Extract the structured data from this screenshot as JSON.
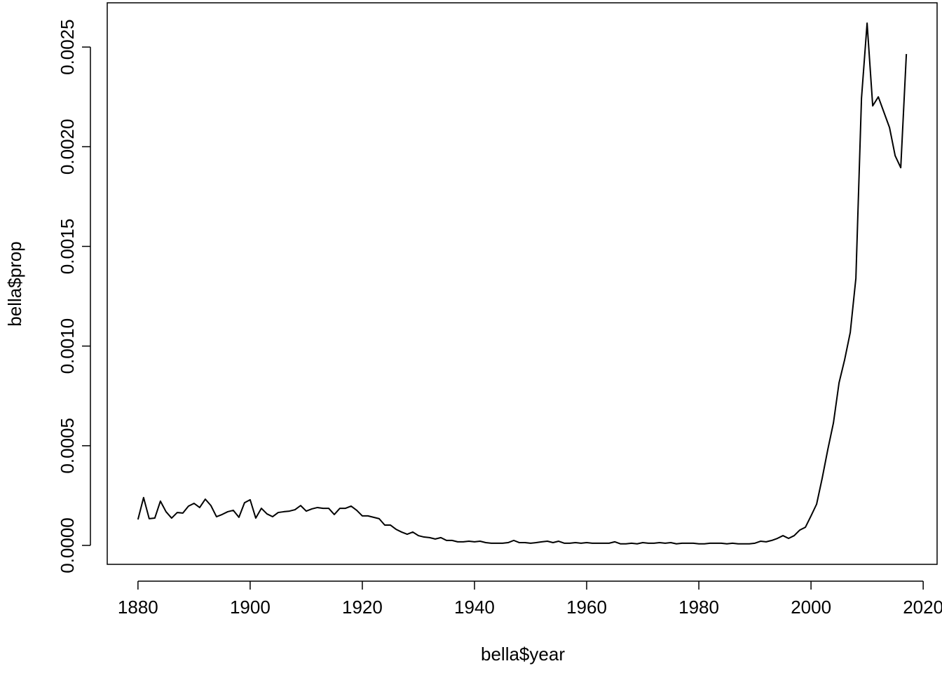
{
  "chart_data": {
    "type": "line",
    "xlabel": "bella$year",
    "ylabel": "bella$prop",
    "color": "#000000",
    "x": [
      1880,
      1881,
      1882,
      1883,
      1884,
      1885,
      1886,
      1887,
      1888,
      1889,
      1890,
      1891,
      1892,
      1893,
      1894,
      1895,
      1896,
      1897,
      1898,
      1899,
      1900,
      1901,
      1902,
      1903,
      1904,
      1905,
      1906,
      1907,
      1908,
      1909,
      1910,
      1911,
      1912,
      1913,
      1914,
      1915,
      1916,
      1917,
      1918,
      1919,
      1920,
      1921,
      1922,
      1923,
      1924,
      1925,
      1926,
      1927,
      1928,
      1929,
      1930,
      1931,
      1932,
      1933,
      1934,
      1935,
      1936,
      1937,
      1938,
      1939,
      1940,
      1941,
      1942,
      1943,
      1944,
      1945,
      1946,
      1947,
      1948,
      1949,
      1950,
      1951,
      1952,
      1953,
      1954,
      1955,
      1956,
      1957,
      1958,
      1959,
      1960,
      1961,
      1962,
      1963,
      1964,
      1965,
      1966,
      1967,
      1968,
      1969,
      1970,
      1971,
      1972,
      1973,
      1974,
      1975,
      1976,
      1977,
      1978,
      1979,
      1980,
      1981,
      1982,
      1983,
      1984,
      1985,
      1986,
      1987,
      1988,
      1989,
      1990,
      1991,
      1992,
      1993,
      1994,
      1995,
      1996,
      1997,
      1998,
      1999,
      2000,
      2001,
      2002,
      2003,
      2004,
      2005,
      2006,
      2007,
      2008,
      2009,
      2010,
      2011,
      2012,
      2013,
      2014,
      2015,
      2016,
      2017
    ],
    "values": [
      0.00013,
      0.00024,
      0.000134,
      0.000137,
      0.000222,
      0.000169,
      0.000137,
      0.000165,
      0.000162,
      0.000197,
      0.000211,
      0.00019,
      0.000232,
      0.0002,
      0.000144,
      0.000155,
      0.000169,
      0.000176,
      0.000141,
      0.000214,
      0.000229,
      0.000137,
      0.000186,
      0.000158,
      0.000144,
      0.000165,
      0.000169,
      0.000172,
      0.000179,
      0.0002,
      0.000172,
      0.000183,
      0.00019,
      0.000186,
      0.000186,
      0.000155,
      0.000186,
      0.000186,
      0.000197,
      0.000176,
      0.000148,
      0.000148,
      0.000141,
      0.000134,
      0.000102,
      0.000102,
      8.1e-05,
      6.7e-05,
      5.6e-05,
      6.7e-05,
      4.9e-05,
      4.2e-05,
      3.9e-05,
      3.2e-05,
      3.9e-05,
      2.5e-05,
      2.5e-05,
      1.8e-05,
      1.8e-05,
      2.1e-05,
      1.8e-05,
      2.1e-05,
      1.4e-05,
      1.1e-05,
      1.1e-05,
      1.1e-05,
      1.4e-05,
      2.5e-05,
      1.4e-05,
      1.4e-05,
      1.1e-05,
      1.4e-05,
      1.8e-05,
      2.1e-05,
      1.4e-05,
      2.1e-05,
      1.1e-05,
      1.1e-05,
      1.4e-05,
      1.1e-05,
      1.4e-05,
      1.1e-05,
      1.1e-05,
      1.1e-05,
      1.1e-05,
      1.8e-05,
      8e-06,
      8e-06,
      1.1e-05,
      8e-06,
      1.4e-05,
      1.1e-05,
      1.1e-05,
      1.4e-05,
      1.1e-05,
      1.4e-05,
      8e-06,
      1.1e-05,
      1.1e-05,
      1.1e-05,
      8e-06,
      8e-06,
      1.1e-05,
      1.1e-05,
      1.1e-05,
      8e-06,
      1.1e-05,
      8e-06,
      8e-06,
      8e-06,
      1.1e-05,
      2.1e-05,
      1.8e-05,
      2.5e-05,
      3.5e-05,
      4.9e-05,
      3.5e-05,
      4.9e-05,
      7.7e-05,
      9.1e-05,
      0.000148,
      0.000207,
      0.000338,
      0.000482,
      0.000615,
      0.000816,
      0.000932,
      0.001069,
      0.00134,
      0.002243,
      0.00262,
      0.002205,
      0.00225,
      0.002173,
      0.002096,
      0.001955,
      0.001895,
      0.002465
    ],
    "xlim": [
      1874.52,
      2022.48
    ],
    "ylim": [
      -9.5e-05,
      0.002722
    ],
    "xticks": [
      1880,
      1900,
      1920,
      1940,
      1960,
      1980,
      2000,
      2020
    ],
    "yticks": [
      {
        "value": 0,
        "label": "0.0000"
      },
      {
        "value": 0.0005,
        "label": "0.0005"
      },
      {
        "value": 0.001,
        "label": "0.0010"
      },
      {
        "value": 0.0015,
        "label": "0.0015"
      },
      {
        "value": 0.002,
        "label": "0.0020"
      },
      {
        "value": 0.0025,
        "label": "0.0025"
      }
    ]
  }
}
